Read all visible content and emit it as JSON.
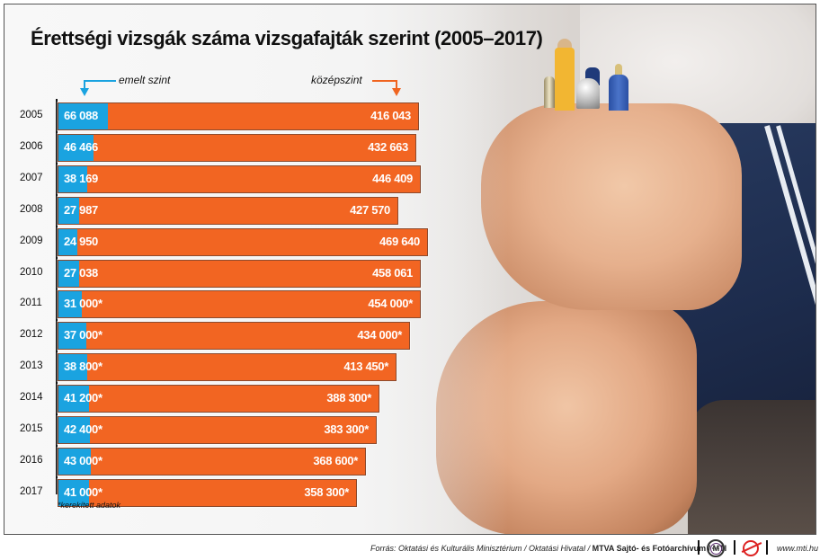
{
  "title": "Érettségi vizsgák száma vizsgafajták szerint (2005–2017)",
  "legend": {
    "emelt": "emelt szint",
    "kozep": "középszint"
  },
  "colors": {
    "emelt": "#1aa3e0",
    "kozep": "#f26522"
  },
  "rows": [
    {
      "year": "2005",
      "emelt": "66 088",
      "kozep": "416 043"
    },
    {
      "year": "2006",
      "emelt": "46 466",
      "kozep": "432 663"
    },
    {
      "year": "2007",
      "emelt": "38 169",
      "kozep": "446 409"
    },
    {
      "year": "2008",
      "emelt": "27 987",
      "kozep": "427 570"
    },
    {
      "year": "2009",
      "emelt": "24 950",
      "kozep": "469 640"
    },
    {
      "year": "2010",
      "emelt": "27 038",
      "kozep": "458 061"
    },
    {
      "year": "2011",
      "emelt": "31 000*",
      "kozep": "454 000*"
    },
    {
      "year": "2012",
      "emelt": "37 000*",
      "kozep": "434 000*"
    },
    {
      "year": "2013",
      "emelt": "38 800*",
      "kozep": "413 450*"
    },
    {
      "year": "2014",
      "emelt": "41 200*",
      "kozep": "388 300*"
    },
    {
      "year": "2015",
      "emelt": "42 400*",
      "kozep": "383 300*"
    },
    {
      "year": "2016",
      "emelt": "43 000*",
      "kozep": "368 600*"
    },
    {
      "year": "2017",
      "emelt": "41 000*",
      "kozep": "358 300*"
    }
  ],
  "footnote": "*kerekített adatok",
  "footer": {
    "source_prefix": "Forrás: Oktatási és Kulturális Minisztérium / Oktatási Hivatal / ",
    "source_bold": "MTVA Sajtó- és Fotóarchívum / MTI",
    "mtva_logo_text": "MTVA",
    "url": "www.mti.hu"
  },
  "chart_data": {
    "type": "bar",
    "orientation": "horizontal",
    "stacked": true,
    "title": "Érettségi vizsgák száma vizsgafajták szerint (2005–2017)",
    "categories": [
      "2005",
      "2006",
      "2007",
      "2008",
      "2009",
      "2010",
      "2011",
      "2012",
      "2013",
      "2014",
      "2015",
      "2016",
      "2017"
    ],
    "series": [
      {
        "name": "emelt szint",
        "color": "#1aa3e0",
        "values": [
          66088,
          46466,
          38169,
          27987,
          24950,
          27038,
          31000,
          37000,
          38800,
          41200,
          42400,
          43000,
          41000
        ]
      },
      {
        "name": "középszint",
        "color": "#f26522",
        "values": [
          416043,
          432663,
          446409,
          427570,
          469640,
          458061,
          454000,
          434000,
          413450,
          388300,
          383300,
          368600,
          358300
        ]
      }
    ],
    "annotations": [
      "*kerekített adatok (2011–2017 values are rounded)"
    ],
    "xlabel": "",
    "ylabel": "",
    "grid": false,
    "legend_position": "top (arrows pointing to bars)"
  }
}
